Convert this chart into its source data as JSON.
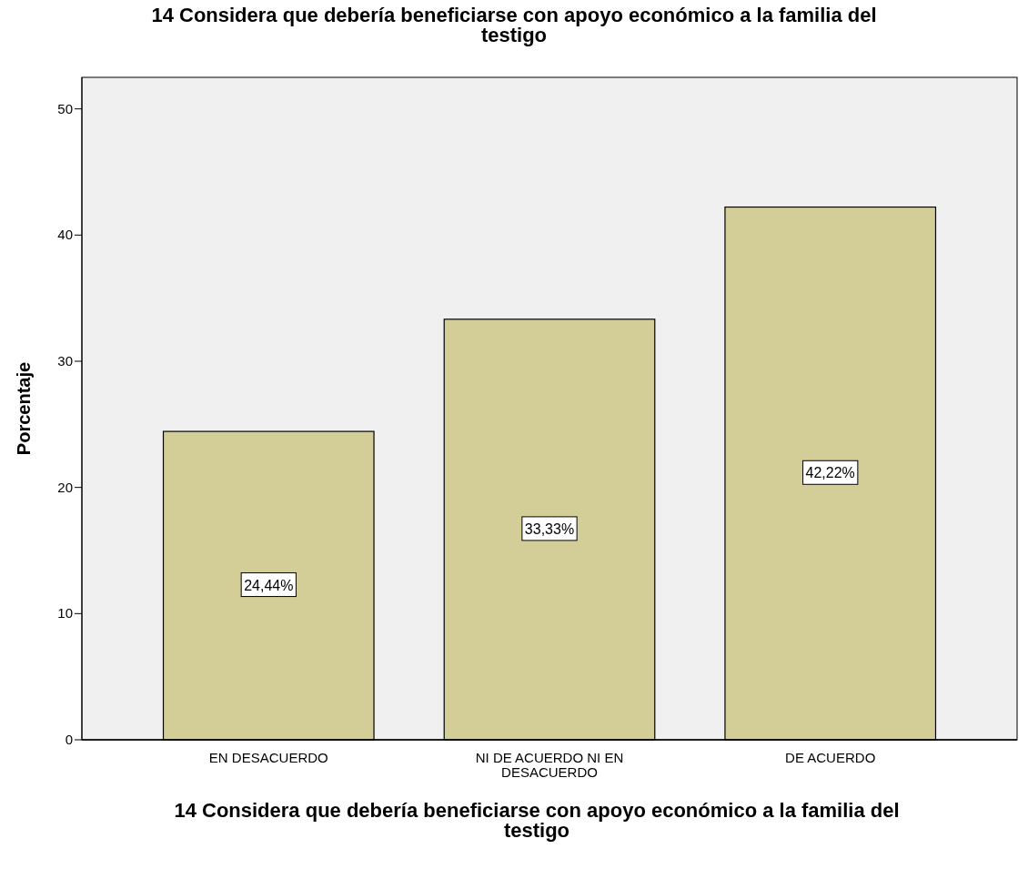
{
  "chart_data": {
    "type": "bar",
    "title": "14 Considera que debería beneficiarse con apoyo económico a la familia del testigo",
    "xlabel": "14 Considera que debería beneficiarse con apoyo económico a la familia del testigo",
    "ylabel": "Porcentaje",
    "categories": [
      "EN DESACUERDO",
      "NI DE ACUERDO NI EN DESACUERDO",
      "DE ACUERDO"
    ],
    "values": [
      24.44,
      33.33,
      42.22
    ],
    "value_labels": [
      "24,44%",
      "33,33%",
      "42,22%"
    ],
    "color": "#d3ce97",
    "ylim": [
      0,
      52.5
    ],
    "yticks": [
      0,
      10,
      20,
      30,
      40,
      50
    ],
    "grid": false
  }
}
